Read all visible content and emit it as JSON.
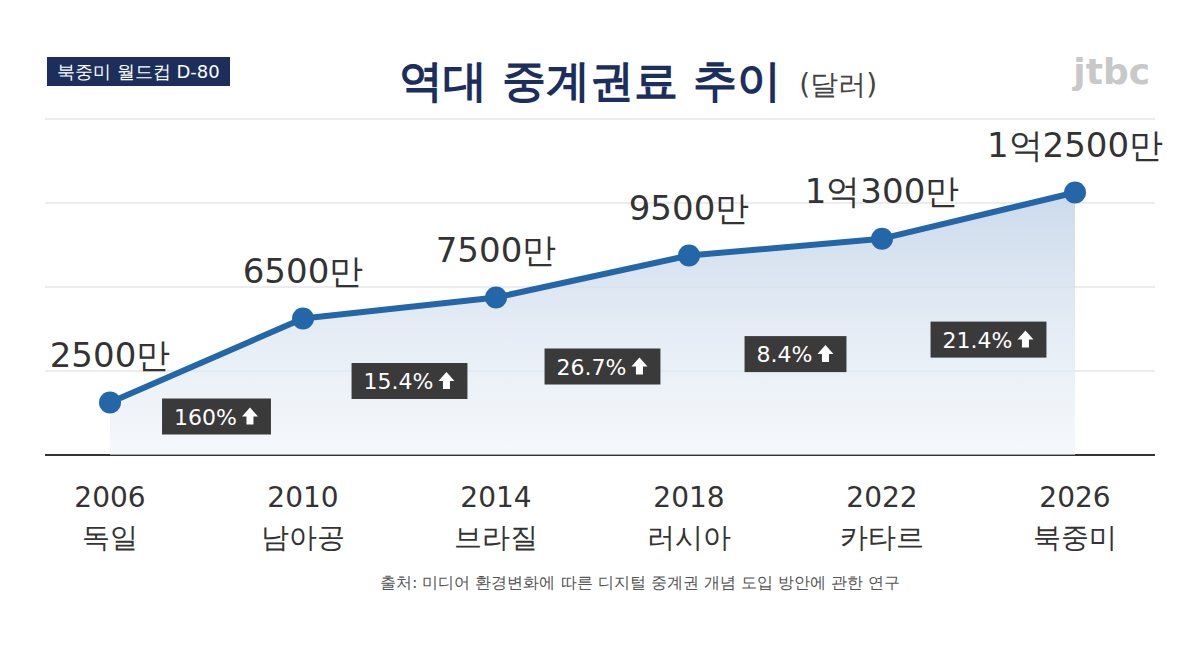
{
  "chart_data": {
    "type": "line",
    "title": "역대 중계권료 추이",
    "subtitle": "(달러)",
    "tag": "북중미 월드컵 D-80",
    "logo": "jtbc",
    "source": "출처: 미디어 환경변화에 따른 디지털 중계권 개념 도입 방안에 관한 연구",
    "categories": [
      "2006\n독일",
      "2010\n남아공",
      "2014\n브라질",
      "2018\n러시아",
      "2022\n카타르",
      "2026\n북중미"
    ],
    "values": [
      25000000,
      65000000,
      75000000,
      95000000,
      103000000,
      125000000
    ],
    "value_labels": [
      "2500만",
      "6500만",
      "7500만",
      "9500만",
      "1억300만",
      "1억2500만"
    ],
    "annotations": [
      "160%",
      "15.4%",
      "26.7%",
      "8.4%",
      "21.4%"
    ],
    "color": "#2467a8",
    "marker": "circle",
    "ylim": [
      0,
      160000000
    ],
    "yticks": [
      0,
      40000000,
      80000000,
      120000000,
      160000000
    ],
    "grid": true,
    "data_labels": true,
    "tick_labels": "x"
  }
}
